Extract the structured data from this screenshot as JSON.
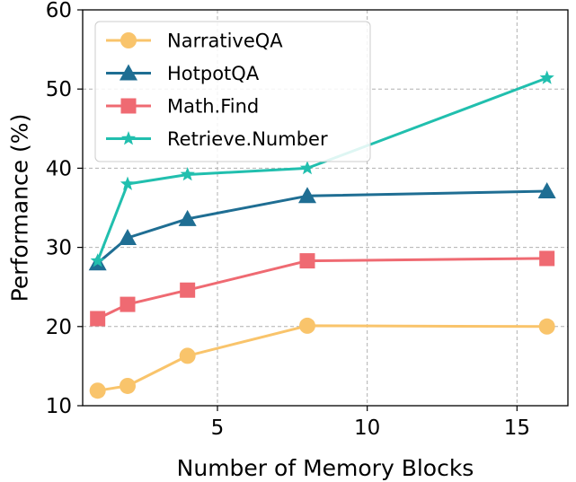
{
  "chart_data": {
    "type": "line",
    "xlabel": "Number of Memory Blocks",
    "ylabel": "Performance (%)",
    "xlim": [
      0.5,
      16.7
    ],
    "ylim": [
      10,
      60
    ],
    "xticks": [
      5,
      10,
      15
    ],
    "yticks": [
      10,
      20,
      30,
      40,
      50,
      60
    ],
    "grid": true,
    "legend_position": "upper-left",
    "series": [
      {
        "name": "NarrativeQA",
        "color": "#F9C46B",
        "marker": "circle",
        "x": [
          1,
          2,
          4,
          8,
          16
        ],
        "y": [
          11.9,
          12.5,
          16.3,
          20.1,
          20.0
        ]
      },
      {
        "name": "HotpotQA",
        "color": "#1F6E93",
        "marker": "triangle",
        "x": [
          1,
          2,
          4,
          8,
          16
        ],
        "y": [
          28.0,
          31.2,
          33.6,
          36.5,
          37.1
        ]
      },
      {
        "name": "Math.Find",
        "color": "#EF6A72",
        "marker": "square",
        "x": [
          1,
          2,
          4,
          8,
          16
        ],
        "y": [
          21.0,
          22.8,
          24.6,
          28.3,
          28.6
        ]
      },
      {
        "name": "Retrieve.Number",
        "color": "#21BFAE",
        "marker": "star",
        "x": [
          1,
          2,
          4,
          8,
          16
        ],
        "y": [
          28.3,
          38.0,
          39.2,
          40.0,
          51.4
        ]
      }
    ]
  }
}
